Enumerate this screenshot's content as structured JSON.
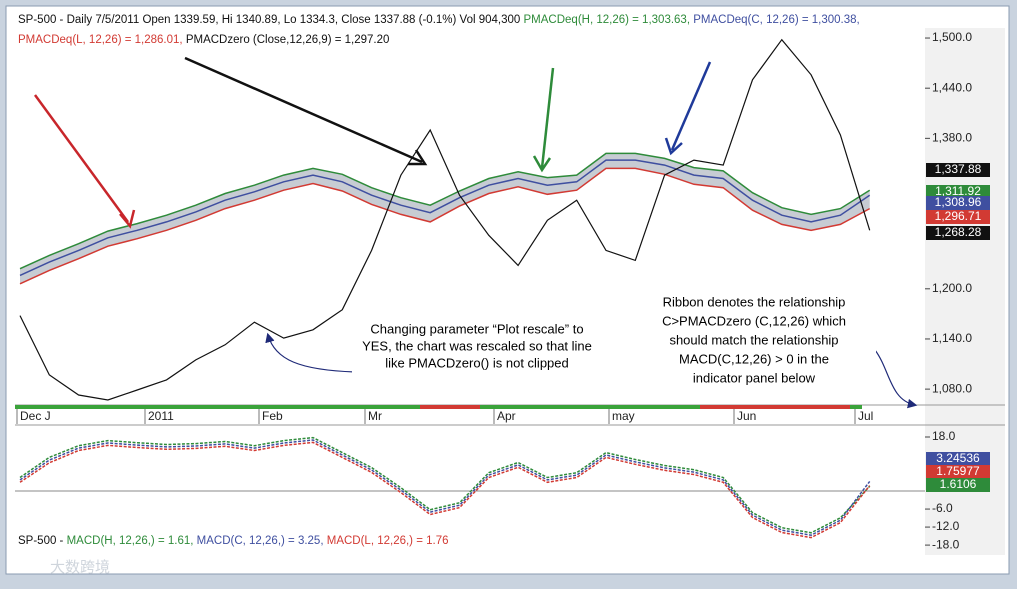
{
  "chart_data": [
    {
      "type": "line",
      "ylim": [
        1061,
        1512
      ],
      "yticks": [
        {
          "value": 1500,
          "label": "1,500.0"
        },
        {
          "value": 1440,
          "label": "1,440.0"
        },
        {
          "value": 1380,
          "label": "1,380.0"
        },
        {
          "value": 1200,
          "label": "1,200.0"
        },
        {
          "value": 1140,
          "label": "1,140.0"
        },
        {
          "value": 1080,
          "label": "1,080.0"
        }
      ],
      "series": [
        {
          "color": "#2e8b3a",
          "values": [
            1224,
            1240,
            1254,
            1269,
            1278,
            1288,
            1300,
            1314,
            1324,
            1336,
            1344,
            1337,
            1321,
            1309,
            1300,
            1317,
            1332,
            1340,
            1333,
            1336,
            1362,
            1362,
            1356,
            1345,
            1341,
            1315,
            1297,
            1289,
            1296,
            1318
          ]
        },
        {
          "color": "#3f4fa0",
          "values": [
            1216,
            1232,
            1246,
            1261,
            1270,
            1280,
            1292,
            1306,
            1316,
            1328,
            1336,
            1328,
            1312,
            1300,
            1291,
            1309,
            1324,
            1332,
            1324,
            1328,
            1354,
            1354,
            1348,
            1336,
            1332,
            1306,
            1288,
            1280,
            1288,
            1312
          ]
        },
        {
          "color": "#d23a33",
          "values": [
            1206,
            1222,
            1236,
            1251,
            1260,
            1270,
            1282,
            1296,
            1306,
            1318,
            1326,
            1317,
            1301,
            1289,
            1280,
            1299,
            1314,
            1322,
            1313,
            1318,
            1344,
            1344,
            1337,
            1325,
            1321,
            1294,
            1277,
            1270,
            1277,
            1296
          ]
        },
        {
          "color": "#111111",
          "values": [
            1168,
            1097,
            1073,
            1067,
            1079,
            1091,
            1115,
            1133,
            1160,
            1141,
            1151,
            1175,
            1246,
            1336,
            1390,
            1312,
            1264,
            1228,
            1282,
            1306,
            1246,
            1234,
            1336,
            1354,
            1348,
            1450,
            1498,
            1456,
            1384,
            1270
          ]
        }
      ],
      "last_labels": [
        {
          "value": 1337.88,
          "label": "1,337.88",
          "color": "#111111"
        },
        {
          "value": 1311.92,
          "label": "1,311.92",
          "color": "#2e8b3a"
        },
        {
          "value": 1308.96,
          "label": "1,308.96",
          "color": "#3f4fa0"
        },
        {
          "value": 1296.71,
          "label": "1,296.71",
          "color": "#d23a33"
        },
        {
          "value": 1268.28,
          "label": "1,268.28",
          "color": "#111111"
        }
      ]
    },
    {
      "type": "line",
      "ylim": [
        -21.3,
        21
      ],
      "yticks": [
        {
          "value": 18,
          "label": "18.0"
        },
        {
          "value": -6,
          "label": "-6.0"
        },
        {
          "value": -12,
          "label": "-12.0"
        },
        {
          "value": -18,
          "label": "-18.0"
        }
      ],
      "series": [
        {
          "color": "#2e8b3a",
          "values": [
            4.5,
            11.2,
            15.1,
            16.8,
            16.1,
            15.5,
            15.8,
            16.5,
            15.1,
            16.8,
            17.8,
            12.8,
            7.8,
            1.1,
            -6.2,
            -3.9,
            6.1,
            9.5,
            4.5,
            6.1,
            12.8,
            10.5,
            8.5,
            7.1,
            4.5,
            -7.2,
            -12.2,
            -13.9,
            -8.9,
            1.6
          ]
        },
        {
          "color": "#3f4fa0",
          "values": [
            3.7,
            10.3,
            14.3,
            16,
            15.3,
            14.7,
            15,
            15.7,
            14.3,
            16,
            17,
            12,
            7,
            0.3,
            -7,
            -4.7,
            5.3,
            8.7,
            3.7,
            5.3,
            12,
            9.7,
            7.7,
            6.3,
            3.7,
            -8,
            -13,
            -14.7,
            -9.7,
            3.2
          ]
        },
        {
          "color": "#d23a33",
          "values": [
            2.9,
            9.4,
            13.5,
            15.2,
            14.5,
            13.9,
            14.2,
            14.9,
            13.5,
            15.2,
            16.2,
            11.2,
            6.2,
            -0.5,
            -7.8,
            -5.5,
            4.5,
            7.9,
            2.9,
            4.5,
            11.2,
            8.9,
            6.9,
            5.5,
            2.9,
            -8.8,
            -13.8,
            -15.5,
            -10.5,
            1.8
          ]
        }
      ],
      "last_labels": [
        {
          "value": 3.24536,
          "color": "#3f4fa0"
        },
        {
          "value": 1.75977,
          "color": "#d23a33"
        },
        {
          "value": 1.6106,
          "color": "#2e8b3a"
        }
      ]
    }
  ],
  "header": [
    {
      "text": "SP-500 - Daily 7/5/2011 Open 1339.59, Hi 1340.89, Lo 1334.3, Close 1337.88 (-0.1%) Vol 904,300 ",
      "color": "#111111"
    },
    {
      "text": "PMACDeq(H, 12,26) = 1,303.63, ",
      "color": "#2e8b3a"
    },
    {
      "text": "PMACDeq(C, 12,26) = 1,300.38,",
      "color": "#3f4fa0"
    }
  ],
  "header2": [
    {
      "text": "PMACDeq(L, 12,26) = 1,286.01, ",
      "color": "#d23a33"
    },
    {
      "text": "PMACDzero (Close,12,26,9) = 1,297.20",
      "color": "#111111"
    }
  ],
  "footer": [
    {
      "text": "SP-500 - ",
      "color": "#111111"
    },
    {
      "text": "MACD(H, 12,26,) = 1.61, ",
      "color": "#2e8b3a"
    },
    {
      "text": "MACD(C, 12,26,) = 3.25, ",
      "color": "#3f4fa0"
    },
    {
      "text": "MACD(L, 12,26,) = 1.76",
      "color": "#d23a33"
    }
  ],
  "date_labels": [
    "Dec J",
    "2011",
    "Feb",
    "Mr",
    "Apr",
    "may",
    "Jun",
    "Jul"
  ],
  "note1": [
    "Changing parameter “Plot rescale” to",
    "YES, the chart was rescaled so that line",
    "like PMACDzero() is not clipped"
  ],
  "note2": [
    "Ribbon denotes the relationship",
    "C>PMACDzero (C,12,26) which",
    "should match the relationship",
    "MACD(C,12,26) > 0 in the",
    "indicator panel below"
  ],
  "watermark": "大数跨境"
}
